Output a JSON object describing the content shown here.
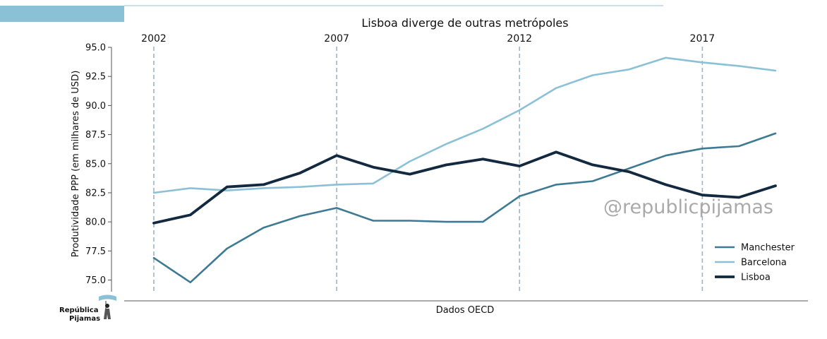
{
  "chart_data": {
    "type": "line",
    "title": "Lisboa diverge de outras metrópoles",
    "ylabel": "Produtividade PPP (em milhares de USD)",
    "xlabel": "",
    "ylim": [
      74,
      95
    ],
    "xlim": [
      2002,
      2019
    ],
    "yticks": [
      75.0,
      77.5,
      80.0,
      82.5,
      85.0,
      87.5,
      90.0,
      92.5,
      95.0
    ],
    "ytick_labels": [
      "75.0",
      "77.5",
      "80.0",
      "82.5",
      "85.0",
      "87.5",
      "90.0",
      "92.5",
      "95.0"
    ],
    "marker_years": [
      "2002",
      "2007",
      "2012",
      "2017"
    ],
    "x": [
      2002,
      2003,
      2004,
      2005,
      2006,
      2007,
      2008,
      2009,
      2010,
      2011,
      2012,
      2013,
      2014,
      2015,
      2016,
      2017,
      2018,
      2019
    ],
    "series": [
      {
        "name": "Manchester",
        "color": "#3d7a94",
        "values": [
          76.9,
          74.8,
          77.7,
          79.5,
          80.5,
          81.2,
          80.1,
          80.1,
          80.0,
          80.0,
          82.2,
          83.2,
          83.5,
          84.6,
          85.7,
          86.3,
          86.5,
          87.6
        ]
      },
      {
        "name": "Barcelona",
        "color": "#8bc1d6",
        "values": [
          82.5,
          82.9,
          82.7,
          82.9,
          83.0,
          83.2,
          83.3,
          85.2,
          86.7,
          88.0,
          89.6,
          91.5,
          92.6,
          93.1,
          94.1,
          93.7,
          93.4,
          93.0
        ]
      },
      {
        "name": "Lisboa",
        "color": "#12293f",
        "values": [
          79.9,
          80.6,
          83.0,
          83.2,
          84.2,
          85.7,
          84.7,
          84.1,
          84.9,
          85.4,
          84.8,
          86.0,
          84.9,
          84.3,
          83.2,
          82.3,
          82.1,
          83.1
        ]
      }
    ],
    "legend_position": "lower-right",
    "watermark": "@republicpijamas",
    "source": "Dados OECD"
  },
  "logo": {
    "line1": "República",
    "line2": "Pijamas"
  },
  "colors": {
    "accent": "#8bc1d6",
    "vline": "#9fb4c5",
    "axis": "#555555"
  }
}
